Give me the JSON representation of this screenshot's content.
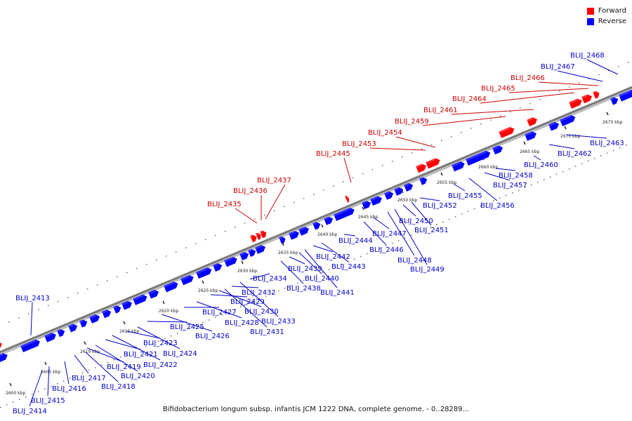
{
  "caption": "Bifidobacterium longum subsp. infantis JCM 1222 DNA, complete genome. - 0..28289...",
  "legend": [
    {
      "label": "Forward",
      "color": "#ff0000"
    },
    {
      "label": "Reverse",
      "color": "#0000ff"
    }
  ],
  "colors": {
    "forward": "#ff0000",
    "reverse": "#0000ff",
    "forward_label": "#cc0000",
    "reverse_label": "#0000cc",
    "backbone": "#8c8c8c"
  },
  "ticks": [
    "2600 kbp",
    "2605 kbp",
    "2610 kbp",
    "2615 kbp",
    "2620 kbp",
    "2625 kbp",
    "2630 kbp",
    "2635 kbp",
    "2640 kbp",
    "2645 kbp",
    "2650 kbp",
    "2655 kbp",
    "2660 kbp",
    "2665 kbp",
    "2670 kbp",
    "2675 kbp"
  ],
  "forward_genes": [
    "BLIJ_2435",
    "BLIJ_2436",
    "BLIJ_2437",
    "BLIJ_2445",
    "BLIJ_2453",
    "BLIJ_2454",
    "BLIJ_2459",
    "BLIJ_2461",
    "BLIJ_2464",
    "BLIJ_2465",
    "BLIJ_2466"
  ],
  "reverse_genes": [
    "BLIJ_2413",
    "BLIJ_2414",
    "BLIJ_2415",
    "BLIJ_2416",
    "BLIJ_2417",
    "BLIJ_2418",
    "BLIJ_2419",
    "BLIJ_2420",
    "BLIJ_2421",
    "BLIJ_2422",
    "BLIJ_2423",
    "BLIJ_2424",
    "BLIJ_2425",
    "BLIJ_2426",
    "BLIJ_2427",
    "BLIJ_2428",
    "BLIJ_2429",
    "BLIJ_2430",
    "BLIJ_2431",
    "BLIJ_2432",
    "BLIJ_2433",
    "BLIJ_2434",
    "BLIJ_2438",
    "BLIJ_2439",
    "BLIJ_2440",
    "BLIJ_2441",
    "BLIJ_2442",
    "BLIJ_2443",
    "BLIJ_2444",
    "BLIJ_2446",
    "BLIJ_2447",
    "BLIJ_2448",
    "BLIJ_2449",
    "BLIJ_2450",
    "BLIJ_2451",
    "BLIJ_2452",
    "BLIJ_2455",
    "BLIJ_2456",
    "BLIJ_2457",
    "BLIJ_2458",
    "BLIJ_2460",
    "BLIJ_2462",
    "BLIJ_2463",
    "BLIJ_2467",
    "BLIJ_2468"
  ]
}
